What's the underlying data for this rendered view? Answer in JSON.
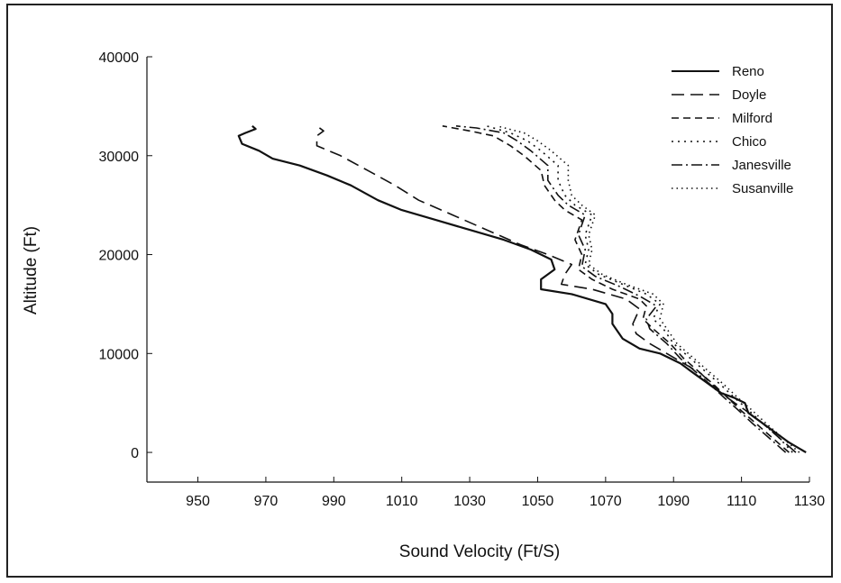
{
  "chart_data": {
    "type": "line",
    "title": "",
    "xlabel": "Sound Velocity (Ft/S)",
    "ylabel": "Altitude (Ft)",
    "xlim": [
      935,
      1130
    ],
    "ylim": [
      -3000,
      40000
    ],
    "xticks": [
      950,
      970,
      990,
      1010,
      1030,
      1050,
      1070,
      1090,
      1110,
      1130
    ],
    "yticks": [
      0,
      10000,
      20000,
      30000,
      40000
    ],
    "grid": false,
    "legend_position": "top-right",
    "series": [
      {
        "name": "Reno",
        "dash": "solid",
        "x": [
          1129,
          1124,
          1118,
          1112,
          1111,
          1108,
          1104,
          1100,
          1096,
          1092,
          1086,
          1080,
          1075,
          1072,
          1072,
          1070,
          1060,
          1051,
          1051,
          1055,
          1054,
          1048,
          1040,
          1030,
          1020,
          1010,
          1003,
          995,
          988,
          980,
          972,
          968,
          963,
          962,
          964,
          967,
          966
        ],
        "y": [
          0,
          1000,
          2500,
          4000,
          5000,
          5500,
          6000,
          7000,
          8000,
          9000,
          10000,
          10500,
          11500,
          13000,
          14000,
          15000,
          16000,
          16500,
          17500,
          18500,
          19500,
          20500,
          21500,
          22500,
          23500,
          24500,
          25500,
          27000,
          28000,
          29000,
          29700,
          30500,
          31200,
          32000,
          32300,
          32700,
          33000
        ]
      },
      {
        "name": "Doyle",
        "dash": "14,7",
        "x": [
          1126,
          1121,
          1116,
          1111,
          1108,
          1104,
          1101,
          1098,
          1093,
          1088,
          1083,
          1079,
          1078,
          1080,
          1076,
          1066,
          1057,
          1058,
          1060,
          1053,
          1045,
          1035,
          1025,
          1015,
          1008,
          1000,
          992,
          985,
          985,
          987,
          985
        ],
        "y": [
          0,
          1500,
          3000,
          4300,
          5000,
          6000,
          7000,
          8000,
          9000,
          10000,
          11000,
          12000,
          13000,
          14500,
          15500,
          16500,
          17000,
          18000,
          19000,
          20000,
          21000,
          22500,
          24000,
          25500,
          27000,
          28500,
          30000,
          31000,
          32000,
          32500,
          33000
        ]
      },
      {
        "name": "Milford",
        "dash": "8,5",
        "x": [
          1124,
          1119,
          1114,
          1110,
          1106,
          1102,
          1098,
          1093,
          1089,
          1084,
          1081,
          1082,
          1080,
          1072,
          1066,
          1062,
          1063,
          1061,
          1063,
          1058,
          1055,
          1052,
          1051,
          1046,
          1042,
          1037,
          1030,
          1022
        ],
        "y": [
          0,
          1500,
          3000,
          4200,
          5500,
          6800,
          8000,
          9500,
          11000,
          12500,
          13500,
          14800,
          15500,
          16500,
          17500,
          18500,
          20000,
          21500,
          23500,
          24500,
          25500,
          27000,
          28500,
          30000,
          31000,
          32000,
          32500,
          33000
        ]
      },
      {
        "name": "Chico",
        "dash": "2,5",
        "x": [
          1125,
          1121,
          1116,
          1112,
          1108,
          1104,
          1100,
          1095,
          1090,
          1087,
          1084,
          1086,
          1082,
          1075,
          1068,
          1064,
          1065,
          1064,
          1066,
          1061,
          1058,
          1056,
          1056,
          1051,
          1047,
          1042,
          1035
        ],
        "y": [
          0,
          1500,
          3000,
          4300,
          5500,
          6800,
          8000,
          9500,
          11000,
          12500,
          13500,
          15000,
          16000,
          17000,
          18000,
          19000,
          20500,
          22000,
          24000,
          25000,
          26000,
          27500,
          29000,
          30500,
          31500,
          32300,
          33000
        ]
      },
      {
        "name": "Janesville",
        "dash": "12,4,2,4",
        "x": [
          1123,
          1118,
          1113,
          1109,
          1105,
          1101,
          1097,
          1092,
          1088,
          1083,
          1082,
          1085,
          1080,
          1074,
          1067,
          1063,
          1064,
          1062,
          1064,
          1059,
          1056,
          1053,
          1053,
          1048,
          1044,
          1040,
          1032,
          1026
        ],
        "y": [
          0,
          1500,
          3000,
          4300,
          5500,
          6800,
          8000,
          9500,
          11000,
          12500,
          13500,
          14800,
          15800,
          16800,
          17800,
          18800,
          20500,
          22000,
          24000,
          25000,
          26000,
          27500,
          29000,
          30500,
          31500,
          32300,
          32800,
          33000
        ]
      },
      {
        "name": "Susanville",
        "dash": "1.5,4",
        "x": [
          1127,
          1122,
          1117,
          1113,
          1109,
          1105,
          1101,
          1096,
          1091,
          1089,
          1086,
          1087,
          1084,
          1076,
          1069,
          1065,
          1066,
          1065,
          1067,
          1063,
          1060,
          1059,
          1059,
          1054,
          1050,
          1046,
          1038
        ],
        "y": [
          0,
          1500,
          3000,
          4300,
          5500,
          6800,
          8000,
          9500,
          11000,
          12000,
          13500,
          15000,
          16000,
          17000,
          18000,
          19000,
          20500,
          22000,
          24000,
          25000,
          26000,
          27500,
          29000,
          30500,
          31500,
          32300,
          33000
        ]
      }
    ]
  }
}
